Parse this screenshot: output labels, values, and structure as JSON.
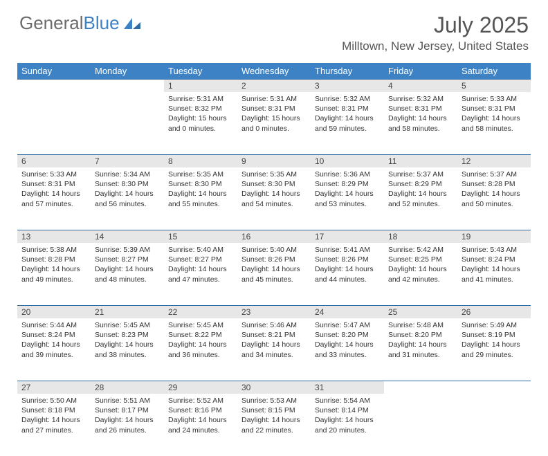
{
  "logo": {
    "text1": "General",
    "text2": "Blue"
  },
  "title": "July 2025",
  "location": "Milltown, New Jersey, United States",
  "day_headers": [
    "Sunday",
    "Monday",
    "Tuesday",
    "Wednesday",
    "Thursday",
    "Friday",
    "Saturday"
  ],
  "colors": {
    "header_bg": "#3c82c4",
    "header_text": "#ffffff",
    "daynum_bg": "#e7e7e7",
    "border": "#2e6aa3",
    "body_bg": "#ffffff",
    "text": "#333333",
    "logo_gray": "#6b6b6b",
    "logo_blue": "#3c82c4"
  },
  "weeks": [
    [
      null,
      null,
      {
        "n": "1",
        "sunrise": "5:31 AM",
        "sunset": "8:32 PM",
        "daylight": "15 hours and 0 minutes."
      },
      {
        "n": "2",
        "sunrise": "5:31 AM",
        "sunset": "8:31 PM",
        "daylight": "15 hours and 0 minutes."
      },
      {
        "n": "3",
        "sunrise": "5:32 AM",
        "sunset": "8:31 PM",
        "daylight": "14 hours and 59 minutes."
      },
      {
        "n": "4",
        "sunrise": "5:32 AM",
        "sunset": "8:31 PM",
        "daylight": "14 hours and 58 minutes."
      },
      {
        "n": "5",
        "sunrise": "5:33 AM",
        "sunset": "8:31 PM",
        "daylight": "14 hours and 58 minutes."
      }
    ],
    [
      {
        "n": "6",
        "sunrise": "5:33 AM",
        "sunset": "8:31 PM",
        "daylight": "14 hours and 57 minutes."
      },
      {
        "n": "7",
        "sunrise": "5:34 AM",
        "sunset": "8:30 PM",
        "daylight": "14 hours and 56 minutes."
      },
      {
        "n": "8",
        "sunrise": "5:35 AM",
        "sunset": "8:30 PM",
        "daylight": "14 hours and 55 minutes."
      },
      {
        "n": "9",
        "sunrise": "5:35 AM",
        "sunset": "8:30 PM",
        "daylight": "14 hours and 54 minutes."
      },
      {
        "n": "10",
        "sunrise": "5:36 AM",
        "sunset": "8:29 PM",
        "daylight": "14 hours and 53 minutes."
      },
      {
        "n": "11",
        "sunrise": "5:37 AM",
        "sunset": "8:29 PM",
        "daylight": "14 hours and 52 minutes."
      },
      {
        "n": "12",
        "sunrise": "5:37 AM",
        "sunset": "8:28 PM",
        "daylight": "14 hours and 50 minutes."
      }
    ],
    [
      {
        "n": "13",
        "sunrise": "5:38 AM",
        "sunset": "8:28 PM",
        "daylight": "14 hours and 49 minutes."
      },
      {
        "n": "14",
        "sunrise": "5:39 AM",
        "sunset": "8:27 PM",
        "daylight": "14 hours and 48 minutes."
      },
      {
        "n": "15",
        "sunrise": "5:40 AM",
        "sunset": "8:27 PM",
        "daylight": "14 hours and 47 minutes."
      },
      {
        "n": "16",
        "sunrise": "5:40 AM",
        "sunset": "8:26 PM",
        "daylight": "14 hours and 45 minutes."
      },
      {
        "n": "17",
        "sunrise": "5:41 AM",
        "sunset": "8:26 PM",
        "daylight": "14 hours and 44 minutes."
      },
      {
        "n": "18",
        "sunrise": "5:42 AM",
        "sunset": "8:25 PM",
        "daylight": "14 hours and 42 minutes."
      },
      {
        "n": "19",
        "sunrise": "5:43 AM",
        "sunset": "8:24 PM",
        "daylight": "14 hours and 41 minutes."
      }
    ],
    [
      {
        "n": "20",
        "sunrise": "5:44 AM",
        "sunset": "8:24 PM",
        "daylight": "14 hours and 39 minutes."
      },
      {
        "n": "21",
        "sunrise": "5:45 AM",
        "sunset": "8:23 PM",
        "daylight": "14 hours and 38 minutes."
      },
      {
        "n": "22",
        "sunrise": "5:45 AM",
        "sunset": "8:22 PM",
        "daylight": "14 hours and 36 minutes."
      },
      {
        "n": "23",
        "sunrise": "5:46 AM",
        "sunset": "8:21 PM",
        "daylight": "14 hours and 34 minutes."
      },
      {
        "n": "24",
        "sunrise": "5:47 AM",
        "sunset": "8:20 PM",
        "daylight": "14 hours and 33 minutes."
      },
      {
        "n": "25",
        "sunrise": "5:48 AM",
        "sunset": "8:20 PM",
        "daylight": "14 hours and 31 minutes."
      },
      {
        "n": "26",
        "sunrise": "5:49 AM",
        "sunset": "8:19 PM",
        "daylight": "14 hours and 29 minutes."
      }
    ],
    [
      {
        "n": "27",
        "sunrise": "5:50 AM",
        "sunset": "8:18 PM",
        "daylight": "14 hours and 27 minutes."
      },
      {
        "n": "28",
        "sunrise": "5:51 AM",
        "sunset": "8:17 PM",
        "daylight": "14 hours and 26 minutes."
      },
      {
        "n": "29",
        "sunrise": "5:52 AM",
        "sunset": "8:16 PM",
        "daylight": "14 hours and 24 minutes."
      },
      {
        "n": "30",
        "sunrise": "5:53 AM",
        "sunset": "8:15 PM",
        "daylight": "14 hours and 22 minutes."
      },
      {
        "n": "31",
        "sunrise": "5:54 AM",
        "sunset": "8:14 PM",
        "daylight": "14 hours and 20 minutes."
      },
      null,
      null
    ]
  ],
  "labels": {
    "sunrise": "Sunrise: ",
    "sunset": "Sunset: ",
    "daylight": "Daylight: "
  }
}
